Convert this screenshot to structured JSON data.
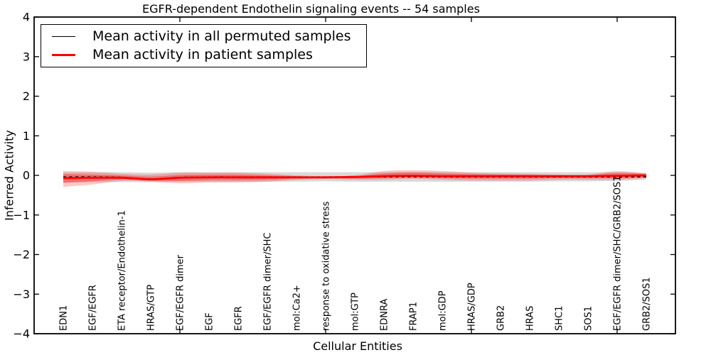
{
  "figure": {
    "title": "EGFR-dependent Endothelin signaling events -- 54 samples",
    "xlabel": "Cellular Entities",
    "ylabel": "Inferred Activity",
    "sample_count": "54"
  },
  "legend": {
    "position": "upper left",
    "items": [
      {
        "label": "Mean activity in all permuted samples",
        "color": "#000000",
        "line_thickness": 1.6
      },
      {
        "label": "Mean activity in patient samples",
        "color": "#ff0000",
        "line_thickness": 2.2
      }
    ]
  },
  "chart_data": {
    "type": "line",
    "title": "EGFR-dependent Endothelin signaling events -- 54 samples",
    "xlabel": "Cellular Entities",
    "ylabel": "Inferred Activity",
    "ylim": [
      -4,
      4
    ],
    "grid": false,
    "legend_position": "upper left",
    "frame_color": "#000000",
    "y_tick_values": [
      4,
      3,
      2,
      1,
      0,
      -1,
      -2,
      -3,
      -4
    ],
    "y_tick_labels": [
      "4",
      "3",
      "2",
      "1",
      "0",
      "−1",
      "−2",
      "−3",
      "−4"
    ],
    "x_tick_positions": [
      5,
      10,
      15,
      20
    ],
    "categories": [
      "EDN1",
      "EGF/EGFR",
      "ETA receptor/Endothelin-1",
      "HRAS/GTP",
      "EGF/EGFR dimer",
      "EGF",
      "EGFR",
      "EGF/EGFR dimer/SHC",
      "mol:Ca2+",
      "response to oxidative stress",
      "mol:GTP",
      "EDNRA",
      "FRAP1",
      "mol:GDP",
      "HRAS/GDP",
      "GRB2",
      "HRAS",
      "SHC1",
      "SOS1",
      "EGF/EGFR dimer/SHC/GRB2/SOS1",
      "GRB2/SOS1"
    ],
    "series": [
      {
        "name": "Mean activity in all permuted samples",
        "color": "#000000",
        "style": "dashed",
        "width": 1.7,
        "values": [
          -0.04,
          -0.04,
          -0.05,
          -0.09,
          -0.05,
          -0.04,
          -0.04,
          -0.04,
          -0.04,
          -0.04,
          -0.04,
          -0.04,
          -0.04,
          -0.04,
          -0.04,
          -0.04,
          -0.04,
          -0.04,
          -0.04,
          -0.04,
          -0.04
        ]
      },
      {
        "name": "Mean activity in patient samples",
        "color": "#ff0000",
        "style": "solid",
        "width": 2.8,
        "values": [
          -0.07,
          -0.06,
          -0.06,
          -0.1,
          -0.06,
          -0.05,
          -0.05,
          -0.05,
          -0.05,
          -0.05,
          -0.04,
          -0.02,
          -0.01,
          -0.02,
          -0.02,
          -0.02,
          -0.02,
          -0.02,
          -0.02,
          -0.01,
          0.0
        ]
      }
    ],
    "bands": [
      {
        "name": "permuted-samples-spread",
        "color": "rgba(120,120,120,0.28)",
        "top": [
          0.07,
          0.08,
          0.08,
          0.07,
          0.08,
          0.08,
          0.08,
          0.08,
          0.08,
          0.08,
          0.08,
          0.08,
          0.09,
          0.08,
          0.08,
          0.08,
          0.08,
          0.08,
          0.08,
          0.08,
          0.06
        ],
        "bottom": [
          -0.18,
          -0.17,
          -0.17,
          -0.17,
          -0.16,
          -0.16,
          -0.16,
          -0.16,
          -0.16,
          -0.15,
          -0.16,
          -0.16,
          -0.16,
          -0.16,
          -0.16,
          -0.16,
          -0.16,
          -0.15,
          -0.15,
          -0.14,
          -0.11
        ]
      },
      {
        "name": "patient-samples-spread-outer",
        "color": "rgba(255,0,0,0.22)",
        "top": [
          0.11,
          0.09,
          0.04,
          0.02,
          0.07,
          0.07,
          0.07,
          0.04,
          0.0,
          -0.02,
          0.0,
          0.11,
          0.13,
          0.11,
          0.07,
          0.05,
          0.04,
          0.02,
          0.02,
          0.11,
          0.05
        ],
        "bottom": [
          -0.29,
          -0.23,
          -0.14,
          -0.16,
          -0.2,
          -0.18,
          -0.18,
          -0.16,
          -0.11,
          -0.09,
          -0.11,
          -0.11,
          -0.09,
          -0.11,
          -0.13,
          -0.13,
          -0.13,
          -0.11,
          -0.11,
          -0.11,
          -0.07
        ]
      },
      {
        "name": "patient-samples-spread-inner",
        "color": "rgba(255,0,0,0.33)",
        "top": [
          0.03,
          0.02,
          0.0,
          -0.03,
          0.01,
          0.02,
          0.02,
          0.0,
          -0.02,
          -0.03,
          -0.02,
          0.05,
          0.07,
          0.05,
          0.03,
          0.02,
          0.01,
          0.0,
          0.0,
          0.06,
          0.03
        ],
        "bottom": [
          -0.19,
          -0.15,
          -0.1,
          -0.13,
          -0.14,
          -0.12,
          -0.12,
          -0.11,
          -0.08,
          -0.07,
          -0.08,
          -0.07,
          -0.05,
          -0.07,
          -0.08,
          -0.08,
          -0.08,
          -0.07,
          -0.07,
          -0.07,
          -0.05
        ]
      }
    ]
  }
}
